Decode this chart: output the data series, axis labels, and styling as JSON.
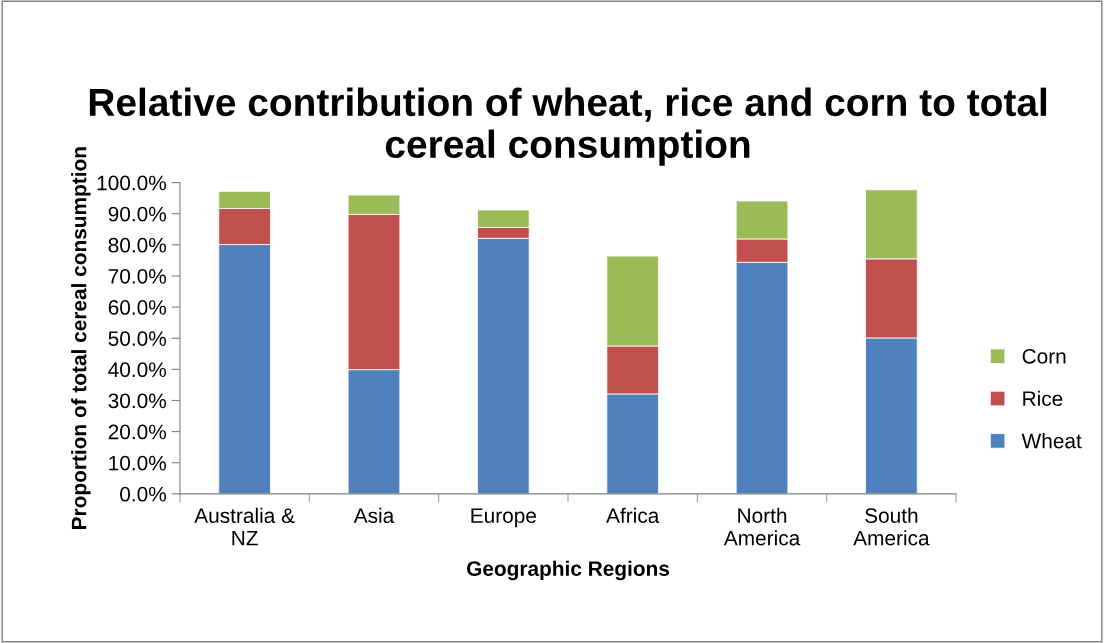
{
  "chart_data": {
    "type": "bar",
    "stacked": true,
    "title": "Relative contribution of wheat, rice and corn to total cereal consumption",
    "xlabel": "Geographic Regions",
    "ylabel": "Proportion of total cereal consumption",
    "categories": [
      "Australia &\nNZ",
      "Asia",
      "Europe",
      "Africa",
      "North\nAmerica",
      "South\nAmerica"
    ],
    "series": [
      {
        "name": "Wheat",
        "color": "#4f81bd",
        "values": [
          80.1,
          39.9,
          82.1,
          32.1,
          74.4,
          50.1
        ]
      },
      {
        "name": "Rice",
        "color": "#c0504d",
        "values": [
          11.6,
          49.9,
          3.5,
          15.4,
          7.5,
          25.4
        ]
      },
      {
        "name": "Corn",
        "color": "#9bbb59",
        "values": [
          5.5,
          6.2,
          5.6,
          28.9,
          12.2,
          22.2
        ]
      }
    ],
    "ylim": [
      0,
      100
    ],
    "yticks": [
      {
        "value": 0,
        "label": "0.0%"
      },
      {
        "value": 10,
        "label": "10.0%"
      },
      {
        "value": 20,
        "label": "20.0%"
      },
      {
        "value": 30,
        "label": "30.0%"
      },
      {
        "value": 40,
        "label": "40.0%"
      },
      {
        "value": 50,
        "label": "50.0%"
      },
      {
        "value": 60,
        "label": "60.0%"
      },
      {
        "value": 70,
        "label": "70.0%"
      },
      {
        "value": 80,
        "label": "80.0%"
      },
      {
        "value": 90,
        "label": "90.0%"
      },
      {
        "value": 100,
        "label": "100.0%"
      }
    ],
    "grid": false,
    "legend": "right"
  }
}
